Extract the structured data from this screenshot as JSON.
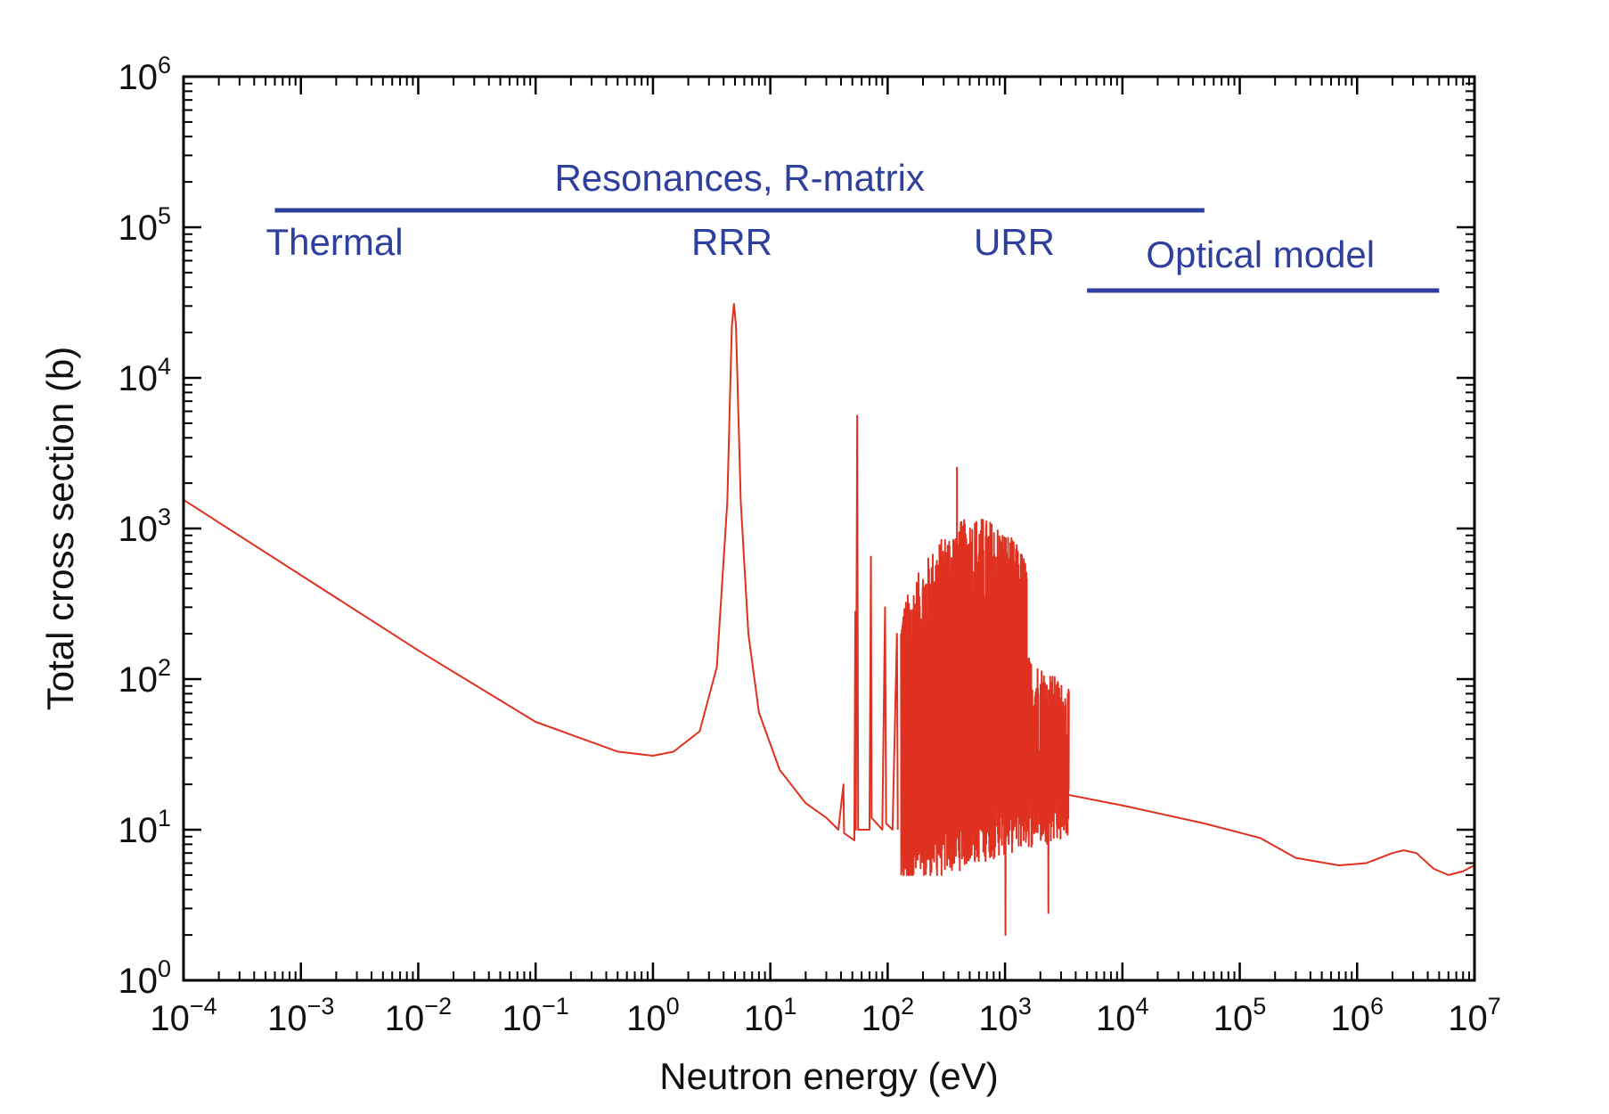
{
  "chart_data": {
    "type": "line",
    "xlabel": "Neutron energy (eV)",
    "ylabel": "Total cross section (b)",
    "x_scale": "log",
    "y_scale": "log",
    "xlim": [
      0.0001,
      10000000
    ],
    "ylim": [
      1,
      1000000
    ],
    "grid": false,
    "x_ticks": [
      {
        "base": "10",
        "exp": "−4",
        "value": 0.0001
      },
      {
        "base": "10",
        "exp": "−3",
        "value": 0.001
      },
      {
        "base": "10",
        "exp": "−2",
        "value": 0.01
      },
      {
        "base": "10",
        "exp": "−1",
        "value": 0.1
      },
      {
        "base": "10",
        "exp": "0",
        "value": 1
      },
      {
        "base": "10",
        "exp": "1",
        "value": 10
      },
      {
        "base": "10",
        "exp": "2",
        "value": 100
      },
      {
        "base": "10",
        "exp": "3",
        "value": 1000
      },
      {
        "base": "10",
        "exp": "4",
        "value": 10000
      },
      {
        "base": "10",
        "exp": "5",
        "value": 100000
      },
      {
        "base": "10",
        "exp": "6",
        "value": 1000000
      },
      {
        "base": "10",
        "exp": "7",
        "value": 10000000
      }
    ],
    "y_ticks": [
      {
        "base": "10",
        "exp": "0",
        "value": 1
      },
      {
        "base": "10",
        "exp": "1",
        "value": 10
      },
      {
        "base": "10",
        "exp": "2",
        "value": 100
      },
      {
        "base": "10",
        "exp": "3",
        "value": 1000
      },
      {
        "base": "10",
        "exp": "4",
        "value": 10000
      },
      {
        "base": "10",
        "exp": "5",
        "value": 100000
      },
      {
        "base": "10",
        "exp": "6",
        "value": 1000000
      }
    ],
    "series": [
      {
        "color": "#e03020",
        "smooth_points": [
          [
            0.0001,
            1550
          ],
          [
            0.001,
            490
          ],
          [
            0.01,
            155
          ],
          [
            0.1,
            52
          ],
          [
            0.5,
            33
          ],
          [
            1.0,
            31
          ],
          [
            1.5,
            33
          ],
          [
            2.5,
            45
          ],
          [
            3.5,
            120
          ],
          [
            4.3,
            1500
          ],
          [
            4.7,
            22000
          ],
          [
            4.9,
            31000
          ],
          [
            5.1,
            22000
          ],
          [
            5.6,
            1500
          ],
          [
            6.5,
            200
          ],
          [
            8,
            60
          ],
          [
            12,
            25
          ],
          [
            20,
            15
          ],
          [
            30,
            12
          ],
          [
            38,
            10
          ],
          [
            42,
            20
          ],
          [
            42.5,
            9.5
          ],
          [
            52,
            8.5
          ],
          [
            53,
            280
          ],
          [
            53.5,
            10
          ],
          [
            55,
            5600
          ],
          [
            56,
            10
          ],
          [
            70,
            10
          ],
          [
            72,
            650
          ],
          [
            73,
            12
          ],
          [
            90,
            10
          ],
          [
            95,
            300
          ],
          [
            97,
            11
          ],
          [
            110,
            10
          ],
          [
            120,
            200
          ],
          [
            122,
            10
          ]
        ],
        "resonance_region": {
          "x_range": [
            130,
            3500
          ],
          "min": 2,
          "max": 2600
        },
        "tail_points": [
          [
            3500,
            17
          ],
          [
            10000,
            14.5
          ],
          [
            50000,
            11
          ],
          [
            150000,
            8.8
          ],
          [
            300000,
            6.5
          ],
          [
            700000,
            5.8
          ],
          [
            1200000,
            6.0
          ],
          [
            2000000,
            7.0
          ],
          [
            2500000,
            7.3
          ],
          [
            3200000,
            7.0
          ],
          [
            4500000,
            5.5
          ],
          [
            6000000,
            5.0
          ],
          [
            8000000,
            5.3
          ],
          [
            10000000,
            5.8
          ]
        ]
      }
    ],
    "annotations": {
      "color": "#2f3f9e",
      "resonances_label": "Resonances, R-matrix",
      "thermal_label": "Thermal",
      "rrr_label": "RRR",
      "urr_label": "URR",
      "optical_label": "Optical model",
      "resonances_range": [
        0.0006,
        50000
      ],
      "optical_range": [
        5000,
        5000000
      ]
    }
  }
}
